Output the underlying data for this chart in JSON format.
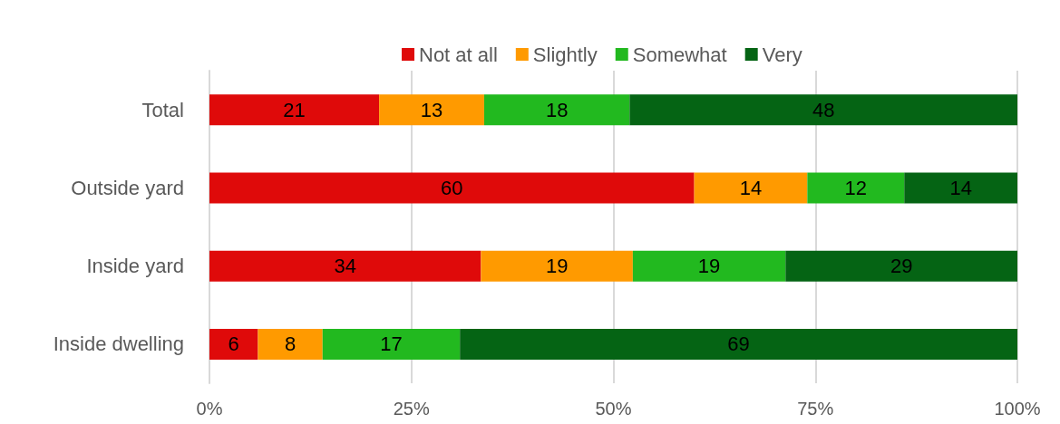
{
  "chart_data": {
    "type": "bar",
    "orientation": "horizontal",
    "stacked": true,
    "categories": [
      "Total",
      "Outside yard",
      "Inside yard",
      "Inside dwelling"
    ],
    "series": [
      {
        "name": "Not at all",
        "color": "#df0a0a",
        "values": [
          21,
          60,
          33.6,
          6
        ],
        "value_labels": [
          "21",
          "60",
          "34",
          "6"
        ]
      },
      {
        "name": "Slightly",
        "color": "#ff9a00",
        "values": [
          13,
          14,
          18.8,
          8
        ],
        "value_labels": [
          "13",
          "14",
          "19",
          "8"
        ]
      },
      {
        "name": "Somewhat",
        "color": "#22b91f",
        "values": [
          18,
          12,
          18.9,
          17
        ],
        "value_labels": [
          "18",
          "12",
          "19",
          "17"
        ]
      },
      {
        "name": "Very",
        "color": "#056414",
        "values": [
          48,
          14,
          28.7,
          69
        ],
        "value_labels": [
          "48",
          "14",
          "29",
          "69"
        ]
      }
    ],
    "xlim": [
      0,
      100
    ],
    "xticks": [
      {
        "value": 0,
        "label": "0%"
      },
      {
        "value": 25,
        "label": "25%"
      },
      {
        "value": 50,
        "label": "50%"
      },
      {
        "value": 75,
        "label": "75%"
      },
      {
        "value": 100,
        "label": "100%"
      }
    ],
    "grid": "x",
    "legend": "top"
  }
}
